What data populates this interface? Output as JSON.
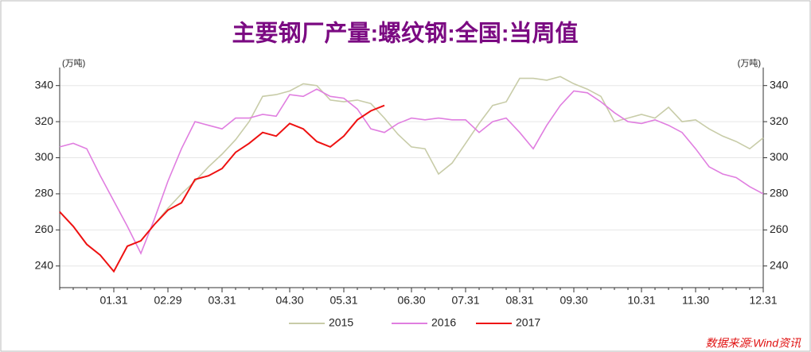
{
  "chart_data": {
    "type": "line",
    "title": "主要钢厂产量:螺纹钢:全国:当周值",
    "y_label": "(万吨)",
    "source": "数据来源:Wind资讯",
    "categories": [
      null,
      null,
      null,
      null,
      "01.31",
      null,
      null,
      null,
      "02.29",
      null,
      null,
      null,
      "03.31",
      null,
      null,
      null,
      null,
      "04.30",
      null,
      null,
      null,
      "05.31",
      null,
      null,
      null,
      null,
      "06.30",
      null,
      null,
      null,
      "07.31",
      null,
      null,
      null,
      "08.31",
      null,
      null,
      null,
      "09.30",
      null,
      null,
      null,
      null,
      "10.31",
      null,
      null,
      null,
      "11.30",
      null,
      null,
      null,
      null,
      "12.31"
    ],
    "series": [
      {
        "name": "2015",
        "color": "#c8cca8",
        "values": [
          null,
          null,
          null,
          null,
          null,
          null,
          null,
          263,
          272,
          280,
          287,
          295,
          302,
          310,
          320,
          334,
          335,
          337,
          341,
          340,
          332,
          331,
          332,
          330,
          322,
          313,
          306,
          305,
          291,
          297,
          308,
          319,
          329,
          331,
          344,
          344,
          343,
          345,
          341,
          338,
          334,
          320,
          322,
          324,
          322,
          328,
          320,
          321,
          316,
          312,
          309,
          305,
          311
        ]
      },
      {
        "name": "2016",
        "color": "#e07ee0",
        "values": [
          306,
          308,
          305,
          290,
          276,
          262,
          247,
          266,
          287,
          305,
          320,
          318,
          316,
          322,
          322,
          324,
          323,
          335,
          334,
          338,
          334,
          333,
          327,
          316,
          314,
          319,
          322,
          321,
          322,
          321,
          321,
          314,
          320,
          322,
          314,
          305,
          318,
          329,
          337,
          336,
          331,
          325,
          320,
          319,
          321,
          318,
          314,
          305,
          295,
          291,
          289,
          284,
          280
        ]
      },
      {
        "name": "2017",
        "color": "#ee1111",
        "values": [
          270,
          262,
          252,
          246,
          237,
          251,
          254,
          263,
          271,
          275,
          288,
          290,
          294,
          303,
          308,
          314,
          312,
          319,
          316,
          309,
          306,
          312,
          321,
          326,
          329,
          null,
          null,
          null,
          null,
          null,
          null,
          null,
          null,
          null,
          null,
          null,
          null,
          null,
          null,
          null,
          null,
          null,
          null,
          null,
          null,
          null,
          null,
          null,
          null,
          null,
          null,
          null,
          null
        ]
      }
    ],
    "ylim": [
      228,
      350
    ],
    "yticks": [
      240,
      260,
      280,
      300,
      320,
      340
    ],
    "grid": true
  }
}
